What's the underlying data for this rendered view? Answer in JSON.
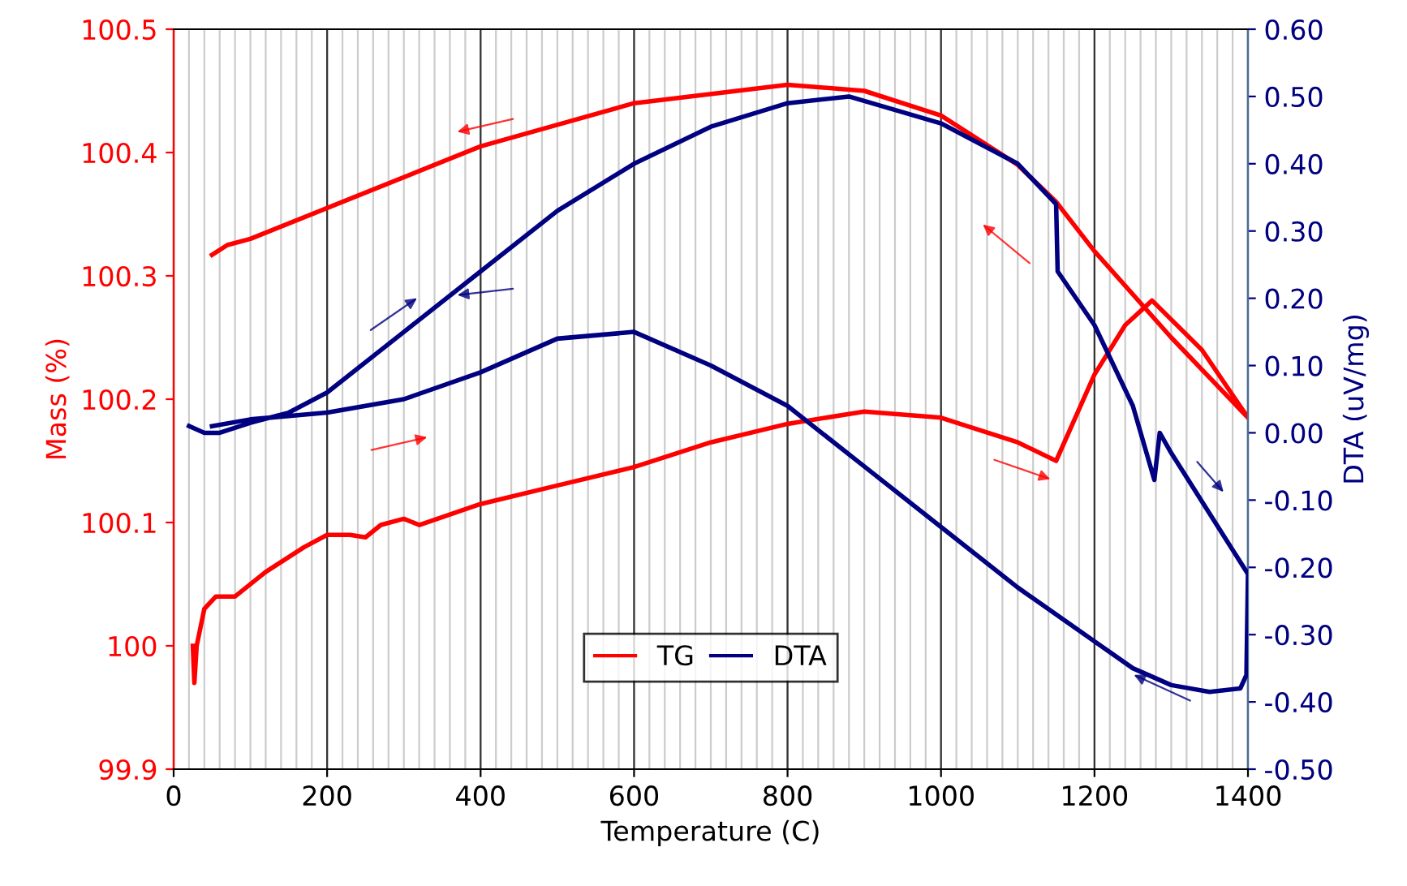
{
  "chart_data": {
    "type": "line",
    "xlabel": "Temperature (C)",
    "ylabel": "Mass (%)",
    "y2label": "DTA (uV/mg)",
    "xlim": [
      0,
      1400
    ],
    "xticks": [
      0,
      200,
      400,
      600,
      800,
      1000,
      1200,
      1400
    ],
    "ylim": [
      99.9,
      100.5
    ],
    "yticks": [
      99.9,
      100,
      100.1,
      100.2,
      100.3,
      100.4,
      100.5
    ],
    "y2lim": [
      -0.5,
      0.6
    ],
    "y2ticks": [
      {
        "value": -0.5,
        "label": "-0.50"
      },
      {
        "value": -0.4,
        "label": "-0.40"
      },
      {
        "value": -0.3,
        "label": "-0.30"
      },
      {
        "value": -0.2,
        "label": "-0.20"
      },
      {
        "value": -0.1,
        "label": "-0.10"
      },
      {
        "value": 0,
        "label": "0.00"
      },
      {
        "value": 0.1,
        "label": "0.10"
      },
      {
        "value": 0.2,
        "label": "0.20"
      },
      {
        "value": 0.3,
        "label": "0.30"
      },
      {
        "value": 0.4,
        "label": "0.40"
      },
      {
        "value": 0.5,
        "label": "0.50"
      },
      {
        "value": 0.6,
        "label": "0.60"
      }
    ],
    "grid": "x",
    "legend": "bottom",
    "marker": "none",
    "line_style": "solid",
    "series": [
      {
        "name": "TG",
        "color": "#ff0000",
        "x": [
          25,
          27,
          30,
          40,
          55,
          80,
          120,
          170,
          200,
          230,
          250,
          270,
          300,
          320,
          400,
          500,
          600,
          700,
          800,
          900,
          1000,
          1100,
          1150,
          1200,
          1240,
          1275,
          1340,
          1400,
          1300,
          1200,
          1150,
          1100,
          1000,
          900,
          800,
          600,
          400,
          200,
          100,
          70,
          50
        ],
        "values": [
          100.0,
          99.97,
          100.0,
          100.03,
          100.04,
          100.04,
          100.06,
          100.08,
          100.09,
          100.09,
          100.088,
          100.098,
          100.103,
          100.098,
          100.115,
          100.13,
          100.145,
          100.165,
          100.18,
          100.19,
          100.185,
          100.165,
          100.15,
          100.22,
          100.26,
          100.28,
          100.24,
          100.185,
          100.25,
          100.32,
          100.36,
          100.39,
          100.43,
          100.45,
          100.455,
          100.44,
          100.405,
          100.355,
          100.33,
          100.325,
          100.317
        ]
      },
      {
        "name": "DTA",
        "color": "#000080",
        "axis": "y2",
        "x": [
          20,
          40,
          60,
          100,
          150,
          200,
          300,
          400,
          500,
          600,
          700,
          800,
          880,
          1000,
          1100,
          1150,
          1152,
          1200,
          1250,
          1278,
          1285,
          1300,
          1350,
          1400,
          1398,
          1390,
          1350,
          1300,
          1250,
          1200,
          1100,
          1000,
          900,
          800,
          700,
          600,
          500,
          400,
          300,
          200,
          100,
          50
        ],
        "values": [
          0.01,
          0.0,
          0.0,
          0.015,
          0.03,
          0.06,
          0.15,
          0.24,
          0.33,
          0.4,
          0.455,
          0.49,
          0.5,
          0.46,
          0.4,
          0.34,
          0.24,
          0.16,
          0.04,
          -0.07,
          0.0,
          -0.03,
          -0.12,
          -0.21,
          -0.36,
          -0.38,
          -0.385,
          -0.375,
          -0.35,
          -0.31,
          -0.23,
          -0.14,
          -0.05,
          0.04,
          0.1,
          0.15,
          0.14,
          0.09,
          0.05,
          0.03,
          0.02,
          0.01
        ]
      }
    ]
  }
}
